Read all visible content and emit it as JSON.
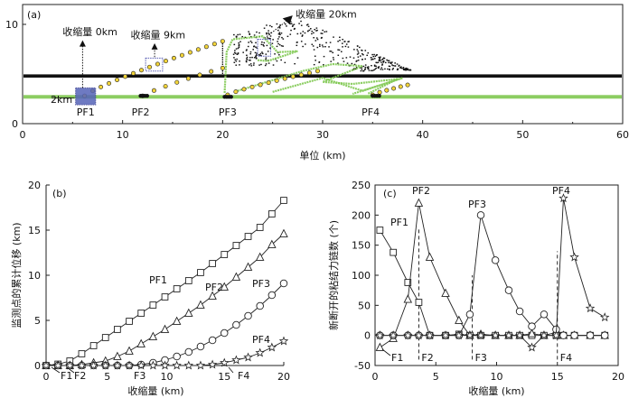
{
  "chart_data": [
    {
      "id": "a",
      "type": "scatter",
      "panel_label": "(a)",
      "xlabel": "单位 (km)",
      "ylabel": "",
      "xlim": [
        0,
        60
      ],
      "ylim": [
        0,
        12
      ],
      "xticks": [
        0,
        10,
        20,
        30,
        40,
        50,
        60
      ],
      "yticks": [
        0,
        10
      ],
      "annotations": [
        "收缩量 0km",
        "收缩量 9km",
        "收缩量 20km",
        "2km"
      ],
      "point_labels": [
        "PF1",
        "PF2",
        "PF3",
        "PF4"
      ],
      "colors": {
        "black_layer": "#111111",
        "green_layer": "#7ec850",
        "markers": "#f2d43a",
        "boxes": "#5563b8"
      },
      "series": [
        {
          "layer": "green",
          "y": 2.7,
          "x_range": [
            0,
            60
          ]
        },
        {
          "layer": "black",
          "y": 4.8,
          "x_range": [
            0,
            60
          ]
        },
        {
          "layer": "black_wedge",
          "x_range": [
            22,
            40
          ],
          "y_top": 10.5
        },
        {
          "layer": "green_fold",
          "x_range": [
            20,
            38
          ],
          "y_top": 8.8
        }
      ]
    },
    {
      "id": "b",
      "type": "line",
      "panel_label": "(b)",
      "xlabel": "收缩量 (km)",
      "ylabel": "监测点的累计位移 (km)",
      "xlim": [
        0,
        20
      ],
      "ylim": [
        0,
        20
      ],
      "xticks": [
        0,
        5,
        10,
        15,
        20
      ],
      "yticks": [
        0,
        5,
        10,
        15,
        20
      ],
      "fault_labels": [
        "F1",
        "F2",
        "F3",
        "F4"
      ],
      "x": [
        0,
        1,
        2,
        3,
        4,
        5,
        6,
        7,
        8,
        9,
        10,
        11,
        12,
        13,
        14,
        15,
        16,
        17,
        18,
        19,
        20
      ],
      "series": [
        {
          "name": "PF1",
          "marker": "square",
          "values": [
            0,
            0.15,
            0.5,
            1.3,
            2.2,
            3.1,
            4.0,
            4.9,
            5.8,
            6.7,
            7.6,
            8.5,
            9.4,
            10.3,
            11.3,
            12.3,
            13.3,
            14.3,
            15.3,
            16.8,
            18.3
          ]
        },
        {
          "name": "PF2",
          "marker": "triangle",
          "values": [
            0,
            0,
            0,
            0.1,
            0.3,
            0.5,
            1.0,
            1.6,
            2.4,
            3.2,
            4.0,
            4.9,
            5.8,
            6.7,
            7.7,
            8.7,
            9.8,
            10.9,
            12.0,
            13.4,
            14.6
          ]
        },
        {
          "name": "PF3",
          "marker": "circle",
          "values": [
            0,
            0,
            0,
            0,
            0,
            0,
            0,
            0,
            0.1,
            0.3,
            0.6,
            1.0,
            1.5,
            2.1,
            2.8,
            3.6,
            4.5,
            5.5,
            6.6,
            7.8,
            9.1
          ]
        },
        {
          "name": "PF4",
          "marker": "star",
          "values": [
            0,
            0,
            0,
            0,
            0,
            0,
            0,
            0,
            0,
            0,
            0,
            0,
            0,
            0,
            0.1,
            0.3,
            0.6,
            0.9,
            1.4,
            2.0,
            2.7
          ]
        }
      ]
    },
    {
      "id": "c",
      "type": "line",
      "panel_label": "(c)",
      "xlabel": "收缩量 (km)",
      "ylabel": "新断开的粘结力链数 (个)",
      "xlim": [
        0,
        20
      ],
      "ylim": [
        -50,
        250
      ],
      "xticks": [
        0,
        5,
        10,
        15,
        20
      ],
      "yticks": [
        -50,
        0,
        50,
        100,
        150,
        200,
        250
      ],
      "fault_labels": [
        "F1",
        "F2",
        "F3",
        "F4"
      ],
      "fault_positions": [
        0.5,
        3.6,
        8.0,
        15.0
      ],
      "x": [
        0.4,
        1.5,
        2.7,
        3.6,
        4.5,
        5.8,
        6.9,
        7.8,
        8.7,
        9.9,
        11.0,
        11.9,
        12.9,
        13.9,
        14.9,
        15.5,
        16.4,
        17.7,
        18.9
      ],
      "series": [
        {
          "name": "PF1",
          "marker": "square",
          "values": [
            175,
            138,
            88,
            55,
            0,
            0,
            2,
            0,
            0,
            0,
            0,
            0,
            0,
            0,
            0,
            0,
            0,
            0,
            0
          ]
        },
        {
          "name": "PF2",
          "marker": "triangle",
          "values": [
            -20,
            -5,
            60,
            220,
            130,
            70,
            25,
            0,
            2,
            0,
            0,
            0,
            3,
            0,
            5,
            0,
            0,
            0,
            0
          ]
        },
        {
          "name": "PF3",
          "marker": "circle",
          "values": [
            0,
            0,
            0,
            0,
            0,
            0,
            0,
            35,
            200,
            125,
            75,
            40,
            15,
            35,
            10,
            0,
            0,
            0,
            0
          ]
        },
        {
          "name": "PF4",
          "marker": "star",
          "values": [
            0,
            0,
            0,
            0,
            0,
            0,
            0,
            0,
            0,
            0,
            0,
            0,
            -20,
            0,
            0,
            228,
            130,
            45,
            30
          ]
        }
      ]
    }
  ]
}
